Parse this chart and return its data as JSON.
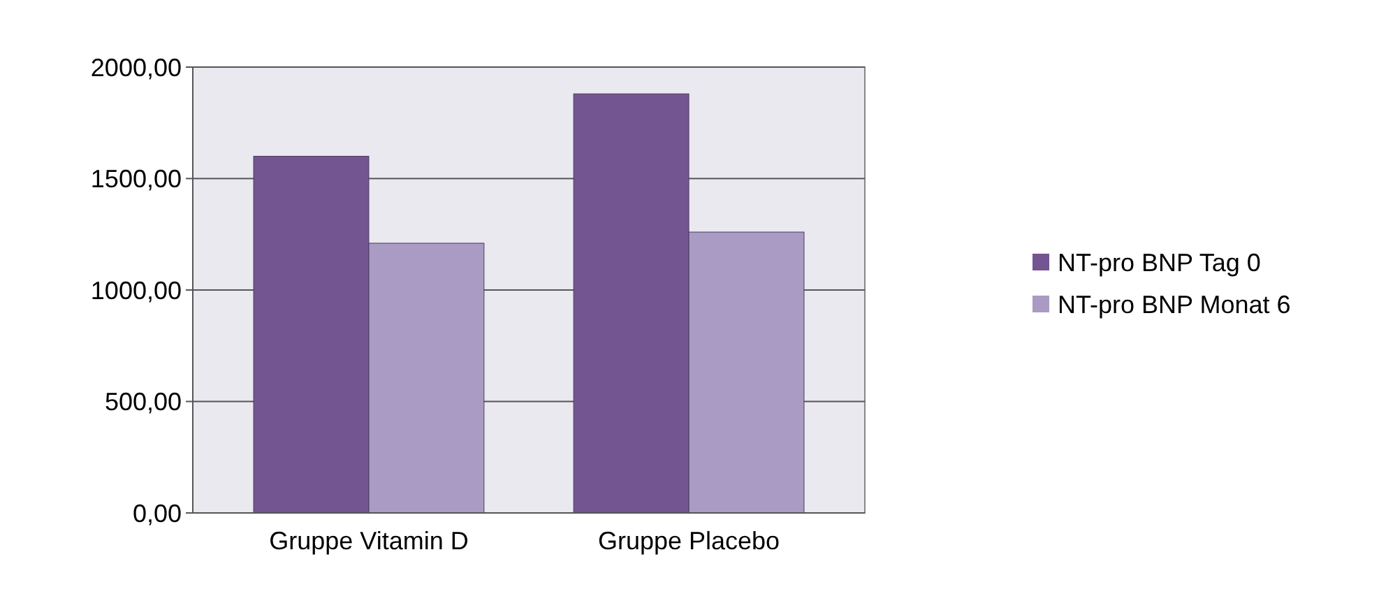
{
  "chart_data": {
    "type": "bar",
    "categories": [
      "Gruppe Vitamin D",
      "Gruppe Placebo"
    ],
    "series": [
      {
        "name": "NT-pro BNP Tag 0",
        "color": "#735592",
        "values": [
          1600,
          1880
        ]
      },
      {
        "name": "NT-pro BNP Monat 6",
        "color": "#a99bc3",
        "values": [
          1210,
          1260
        ]
      }
    ],
    "ylim": [
      0,
      2000
    ],
    "yticks": [
      {
        "value": 0,
        "label": "0,00"
      },
      {
        "value": 500,
        "label": "500,00"
      },
      {
        "value": 1000,
        "label": "1000,00"
      },
      {
        "value": 1500,
        "label": "1500,00"
      },
      {
        "value": 2000,
        "label": "2000,00"
      }
    ],
    "grid": "y",
    "legend": "right"
  }
}
